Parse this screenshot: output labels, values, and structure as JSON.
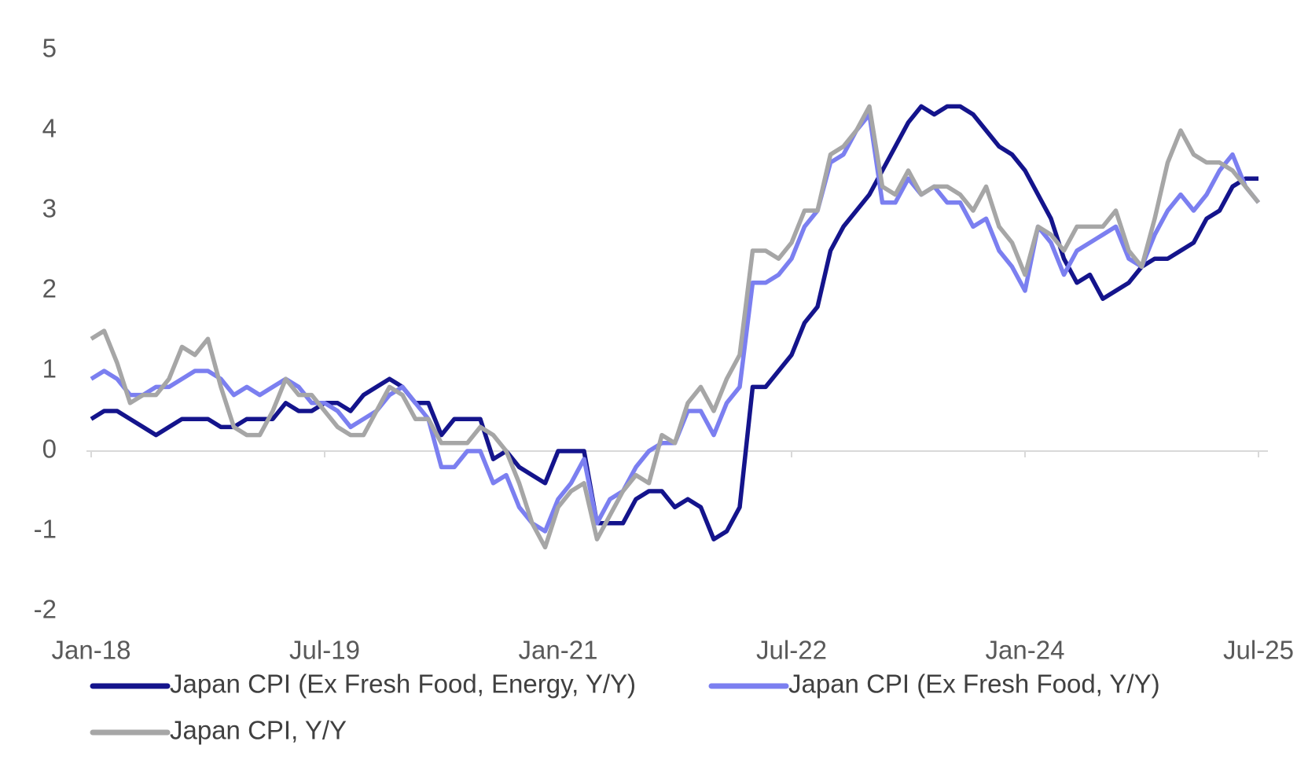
{
  "chart_data": {
    "type": "line",
    "categories": [
      "Jan-18",
      null,
      null,
      null,
      null,
      null,
      null,
      null,
      null,
      null,
      null,
      null,
      null,
      null,
      null,
      null,
      null,
      null,
      "Jul-19",
      null,
      null,
      null,
      null,
      null,
      null,
      null,
      null,
      null,
      null,
      null,
      null,
      null,
      null,
      null,
      null,
      null,
      "Jan-21",
      null,
      null,
      null,
      null,
      null,
      null,
      null,
      null,
      null,
      null,
      null,
      null,
      null,
      null,
      null,
      null,
      null,
      "Jul-22",
      null,
      null,
      null,
      null,
      null,
      null,
      null,
      null,
      null,
      null,
      null,
      null,
      null,
      null,
      null,
      null,
      null,
      "Jan-24",
      null,
      null,
      null,
      null,
      null,
      null,
      null,
      null,
      null,
      null,
      null,
      null,
      null,
      null,
      null,
      null,
      null,
      "Jul-25"
    ],
    "series": [
      {
        "name": "Japan CPI (Ex Fresh Food, Energy, Y/Y)",
        "color": "#14148c",
        "values": [
          0.4,
          0.5,
          0.5,
          0.4,
          0.3,
          0.2,
          0.3,
          0.4,
          0.4,
          0.4,
          0.3,
          0.3,
          0.4,
          0.4,
          0.4,
          0.6,
          0.5,
          0.5,
          0.6,
          0.6,
          0.5,
          0.7,
          0.8,
          0.9,
          0.8,
          0.6,
          0.6,
          0.2,
          0.4,
          0.4,
          0.4,
          -0.1,
          0.0,
          -0.2,
          -0.3,
          -0.4,
          0.0,
          0.0,
          0.0,
          -0.9,
          -0.9,
          -0.9,
          -0.6,
          -0.5,
          -0.5,
          -0.7,
          -0.6,
          -0.7,
          -1.1,
          -1.0,
          -0.7,
          0.8,
          0.8,
          1.0,
          1.2,
          1.6,
          1.8,
          2.5,
          2.8,
          3.0,
          3.2,
          3.5,
          3.8,
          4.1,
          4.3,
          4.2,
          4.3,
          4.3,
          4.2,
          4.0,
          3.8,
          3.7,
          3.5,
          3.2,
          2.9,
          2.4,
          2.1,
          2.2,
          1.9,
          2.0,
          2.1,
          2.3,
          2.4,
          2.4,
          2.5,
          2.6,
          2.9,
          3.0,
          3.3,
          3.4,
          3.4
        ]
      },
      {
        "name": "Japan CPI (Ex Fresh Food, Y/Y)",
        "color": "#7b7ff0",
        "values": [
          0.9,
          1.0,
          0.9,
          0.7,
          0.7,
          0.8,
          0.8,
          0.9,
          1.0,
          1.0,
          0.9,
          0.7,
          0.8,
          0.7,
          0.8,
          0.9,
          0.8,
          0.6,
          0.6,
          0.5,
          0.3,
          0.4,
          0.5,
          0.7,
          0.8,
          0.6,
          0.4,
          -0.2,
          -0.2,
          0.0,
          0.0,
          -0.4,
          -0.3,
          -0.7,
          -0.9,
          -1.0,
          -0.6,
          -0.4,
          -0.1,
          -0.9,
          -0.6,
          -0.5,
          -0.2,
          0.0,
          0.1,
          0.1,
          0.5,
          0.5,
          0.2,
          0.6,
          0.8,
          2.1,
          2.1,
          2.2,
          2.4,
          2.8,
          3.0,
          3.6,
          3.7,
          4.0,
          4.2,
          3.1,
          3.1,
          3.4,
          3.2,
          3.3,
          3.1,
          3.1,
          2.8,
          2.9,
          2.5,
          2.3,
          2.0,
          2.8,
          2.6,
          2.2,
          2.5,
          2.6,
          2.7,
          2.8,
          2.4,
          2.3,
          2.7,
          3.0,
          3.2,
          3.0,
          3.2,
          3.5,
          3.7,
          3.3,
          3.1
        ]
      },
      {
        "name": "Japan CPI, Y/Y",
        "color": "#a6a6a6",
        "values": [
          1.4,
          1.5,
          1.1,
          0.6,
          0.7,
          0.7,
          0.9,
          1.3,
          1.2,
          1.4,
          0.8,
          0.3,
          0.2,
          0.2,
          0.5,
          0.9,
          0.7,
          0.7,
          0.5,
          0.3,
          0.2,
          0.2,
          0.5,
          0.8,
          0.7,
          0.4,
          0.4,
          0.1,
          0.1,
          0.1,
          0.3,
          0.2,
          0.0,
          -0.4,
          -0.9,
          -1.2,
          -0.7,
          -0.5,
          -0.4,
          -1.1,
          -0.8,
          -0.5,
          -0.3,
          -0.4,
          0.2,
          0.1,
          0.6,
          0.8,
          0.5,
          0.9,
          1.2,
          2.5,
          2.5,
          2.4,
          2.6,
          3.0,
          3.0,
          3.7,
          3.8,
          4.0,
          4.3,
          3.3,
          3.2,
          3.5,
          3.2,
          3.3,
          3.3,
          3.2,
          3.0,
          3.3,
          2.8,
          2.6,
          2.2,
          2.8,
          2.7,
          2.5,
          2.8,
          2.8,
          2.8,
          3.0,
          2.5,
          2.3,
          2.9,
          3.6,
          4.0,
          3.7,
          3.6,
          3.6,
          3.5,
          3.3,
          3.1
        ]
      }
    ],
    "ylim": [
      -2,
      5
    ],
    "yticks": [
      -2,
      -1,
      0,
      1,
      2,
      3,
      4,
      5
    ],
    "grid": false,
    "legend": "bottom"
  }
}
